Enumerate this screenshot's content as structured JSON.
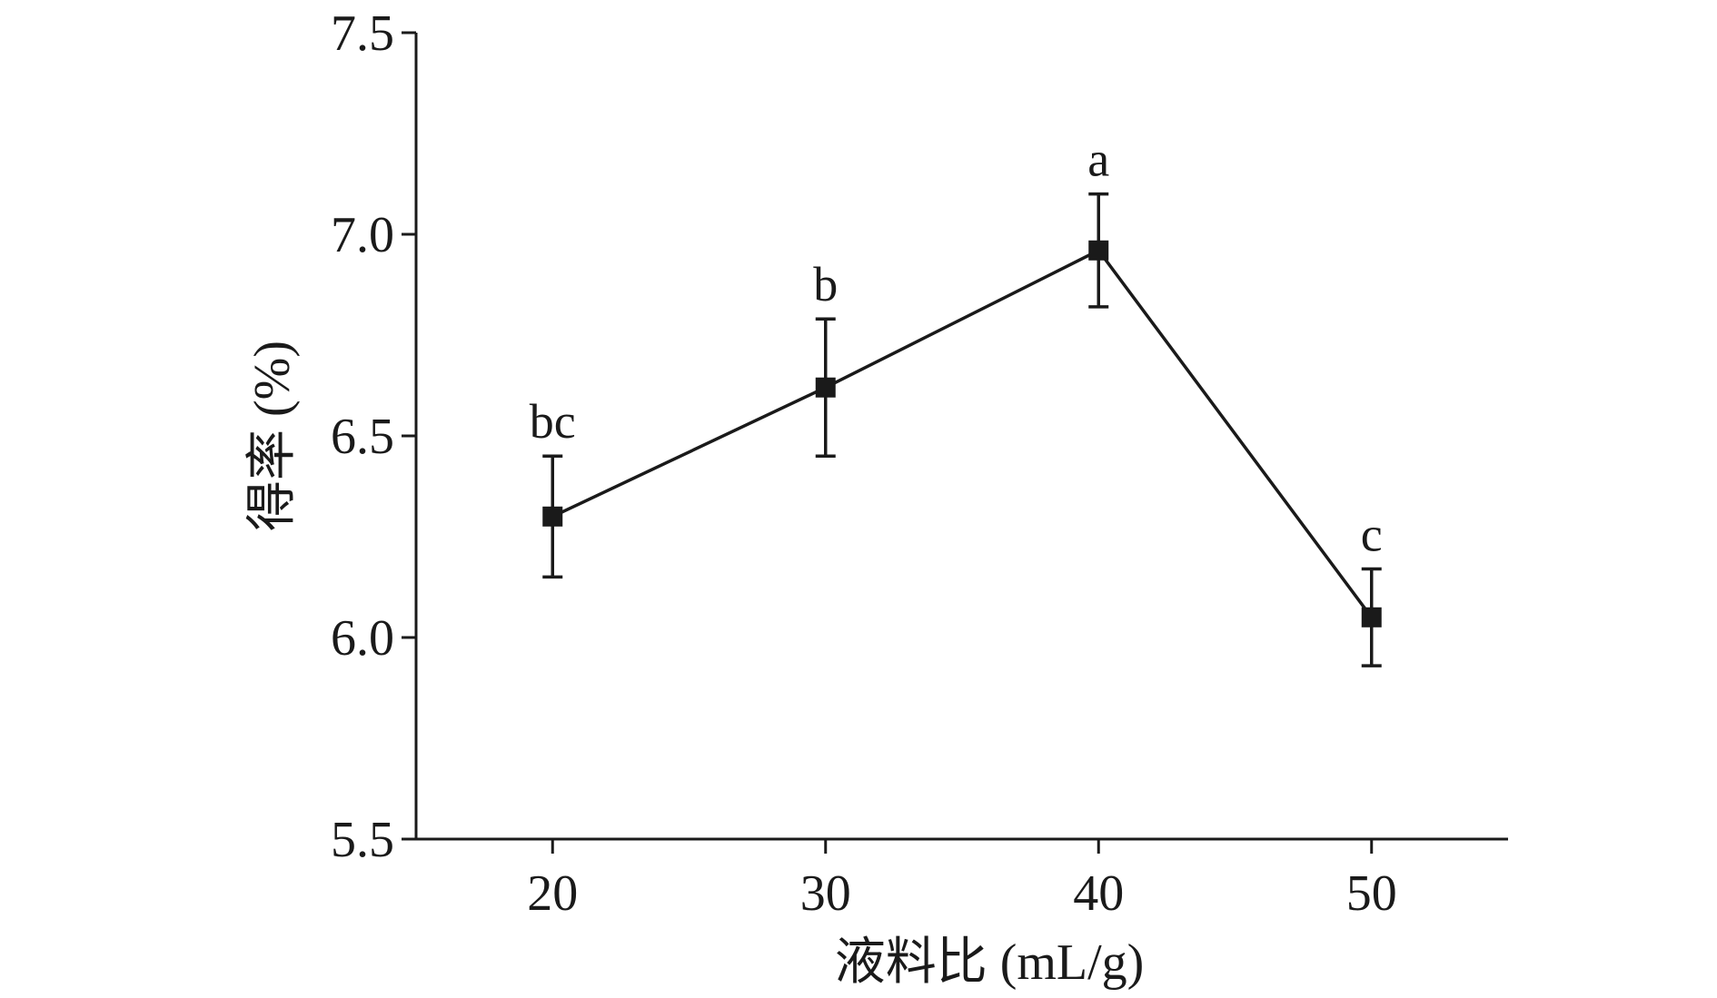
{
  "chart_data": {
    "type": "line",
    "title": "",
    "xlabel": "液料比 (mL/g)",
    "ylabel": "得率 (%)",
    "x": [
      20,
      30,
      40,
      50
    ],
    "x_ticks": [
      "20",
      "30",
      "40",
      "50"
    ],
    "xlim": [
      15,
      55
    ],
    "y_ticks": [
      "5.5",
      "6.0",
      "6.5",
      "7.0",
      "7.5"
    ],
    "ylim": [
      5.5,
      7.5
    ],
    "grid": false,
    "legend": "none",
    "series": [
      {
        "values": [
          6.3,
          6.62,
          6.96,
          6.05
        ],
        "error": [
          0.15,
          0.17,
          0.14,
          0.12
        ],
        "significance": [
          "bc",
          "b",
          "a",
          "c"
        ],
        "marker": "square",
        "color": "#1a1a1a"
      }
    ]
  }
}
